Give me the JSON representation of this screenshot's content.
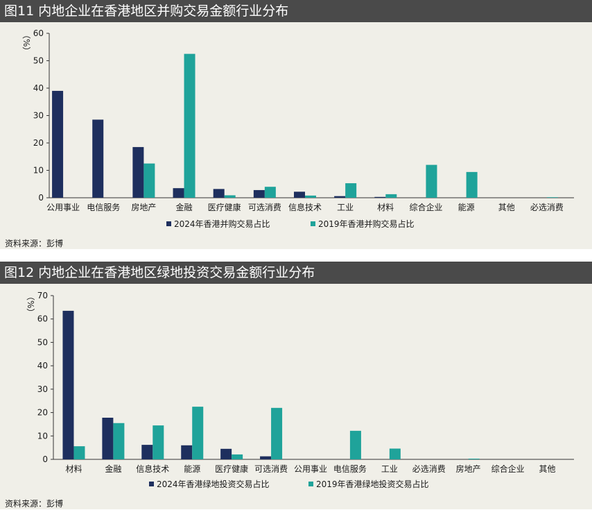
{
  "colors": {
    "series_2024": "#1e2f5e",
    "series_2019": "#1fa39a",
    "panel_bg": "#f0efe8",
    "title_bg": "#4a4a4a"
  },
  "chart_data": [
    {
      "type": "bar",
      "title": "图11 内地企业在香港地区并购交易金额行业分布",
      "ylabel": "（%）",
      "ylim": [
        0,
        60
      ],
      "yticks": [
        0,
        10,
        20,
        30,
        40,
        50,
        60
      ],
      "grid": false,
      "legend_position": "bottom",
      "categories": [
        "公用事业",
        "电信服务",
        "房地产",
        "金融",
        "医疗健康",
        "可选消费",
        "信息技术",
        "工业",
        "材料",
        "综合企业",
        "能源",
        "其他",
        "必选消费"
      ],
      "series": [
        {
          "name": "2024年香港并购交易占比",
          "values": [
            39,
            28.5,
            18.5,
            3.5,
            3.2,
            2.8,
            2.2,
            0.6,
            0.3,
            0,
            0,
            0,
            0
          ]
        },
        {
          "name": "2019年香港并购交易占比",
          "values": [
            0,
            0,
            12.5,
            52.5,
            0.9,
            4,
            0.8,
            5.3,
            1.3,
            12,
            9.4,
            0,
            0.2
          ]
        }
      ],
      "source": "资料来源：彭博"
    },
    {
      "type": "bar",
      "title": "图12 内地企业在香港地区绿地投资交易金额行业分布",
      "ylabel": "（%）",
      "ylim": [
        0,
        70
      ],
      "yticks": [
        0,
        10,
        20,
        30,
        40,
        50,
        60,
        70
      ],
      "grid": false,
      "legend_position": "bottom",
      "categories": [
        "材料",
        "金融",
        "信息技术",
        "能源",
        "医疗健康",
        "可选消费",
        "公用事业",
        "电信服务",
        "工业",
        "必选消费",
        "房地产",
        "综合企业",
        "其他"
      ],
      "series": [
        {
          "name": "2024年香港绿地投资交易占比",
          "values": [
            63.5,
            17.8,
            6.2,
            6,
            4.5,
            1.3,
            0,
            0,
            0,
            0,
            0,
            0,
            0
          ]
        },
        {
          "name": "2019年香港绿地投资交易占比",
          "values": [
            5.6,
            15.5,
            14.5,
            22.5,
            2.1,
            22,
            0,
            12.2,
            4.6,
            0,
            0.3,
            0,
            0
          ]
        }
      ],
      "source": "资料来源：彭博"
    }
  ]
}
